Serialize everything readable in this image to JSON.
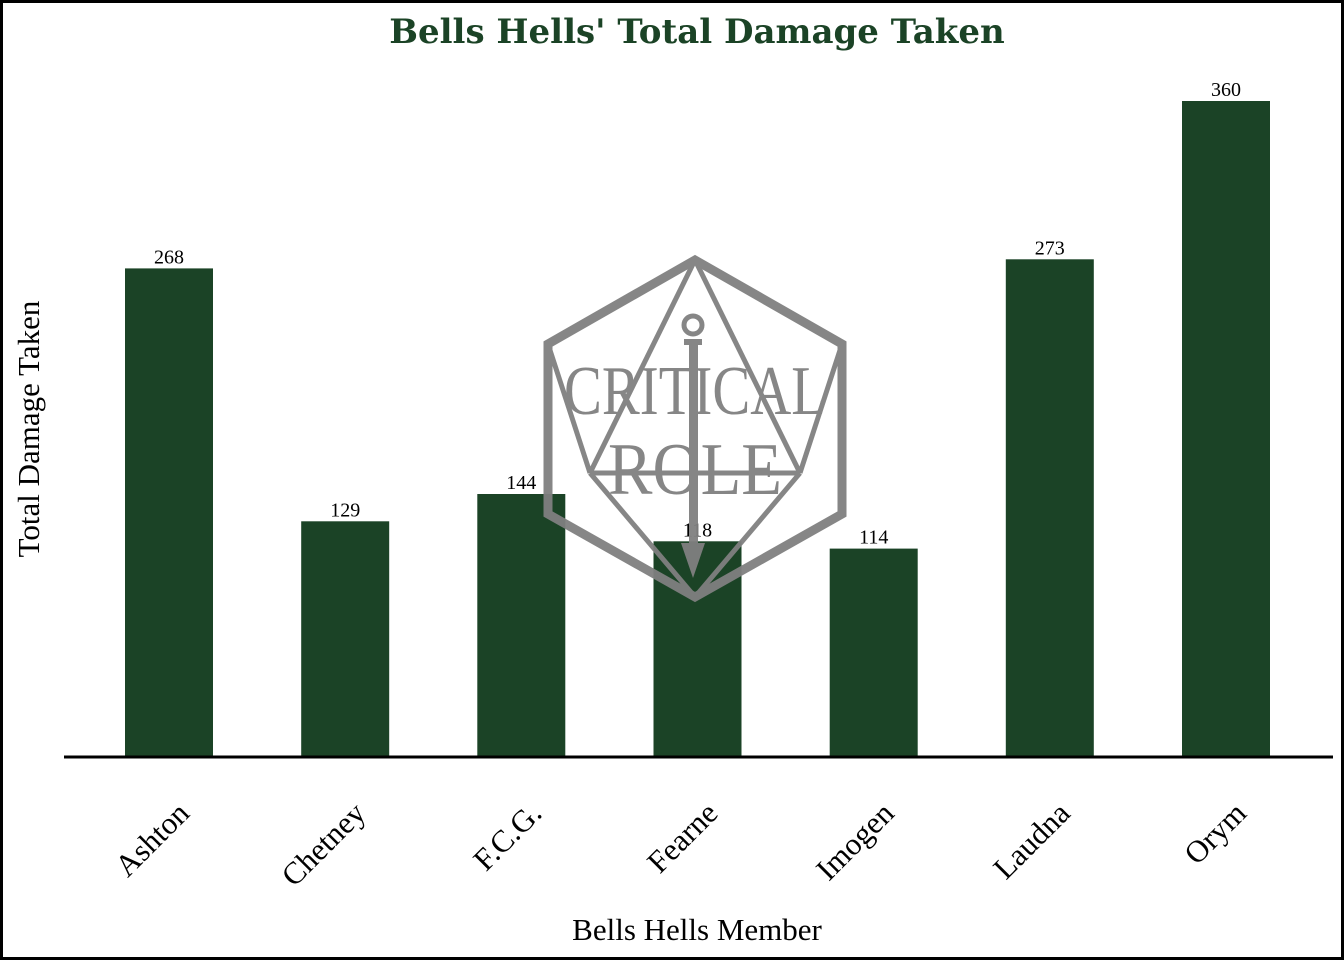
{
  "chart_data": {
    "type": "bar",
    "title": "Bells Hells' Total Damage Taken",
    "xlabel": "Bells Hells Member",
    "ylabel": "Total Damage Taken",
    "categories": [
      "Ashton",
      "Chetney",
      "F.C.G.",
      "Fearne",
      "Imogen",
      "Laudna",
      "Orym"
    ],
    "values": [
      268,
      129,
      144,
      118,
      114,
      273,
      360
    ],
    "ylim": [
      0,
      380
    ],
    "grid": false,
    "legend": "none",
    "bar_color": "#1b4326",
    "title_color": "#1b4326"
  },
  "watermark": {
    "logo_name": "critical-role-logo",
    "line1": "CRITICAL",
    "line2": "ROLE",
    "color": "#808080"
  }
}
